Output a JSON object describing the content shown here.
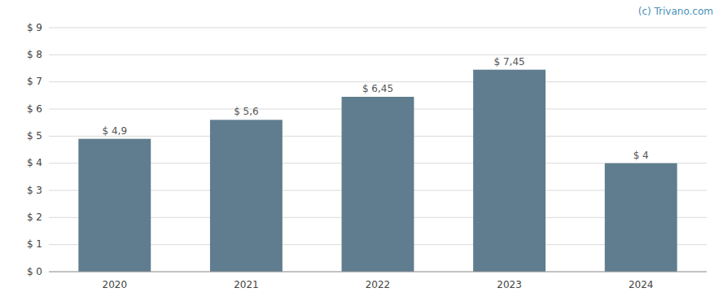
{
  "chart_data": {
    "type": "bar",
    "categories": [
      "2020",
      "2021",
      "2022",
      "2023",
      "2024"
    ],
    "values": [
      4.9,
      5.6,
      6.45,
      7.45,
      4.0
    ],
    "value_labels": [
      "$ 4,9",
      "$ 5,6",
      "$ 6,45",
      "$ 7,45",
      "$ 4"
    ],
    "data_labels": true,
    "color": "#5f7d8e",
    "ylim": [
      0,
      9
    ],
    "yticks": [
      {
        "value": 0,
        "label": "$ 0"
      },
      {
        "value": 1,
        "label": "$ 1"
      },
      {
        "value": 2,
        "label": "$ 2"
      },
      {
        "value": 3,
        "label": "$ 3"
      },
      {
        "value": 4,
        "label": "$ 4"
      },
      {
        "value": 5,
        "label": "$ 5"
      },
      {
        "value": 6,
        "label": "$ 6"
      },
      {
        "value": 7,
        "label": "$ 7"
      },
      {
        "value": 8,
        "label": "$ 8"
      },
      {
        "value": 9,
        "label": "$ 9"
      }
    ],
    "grid": true,
    "annotations": [
      "(c) Trivano.com"
    ]
  }
}
